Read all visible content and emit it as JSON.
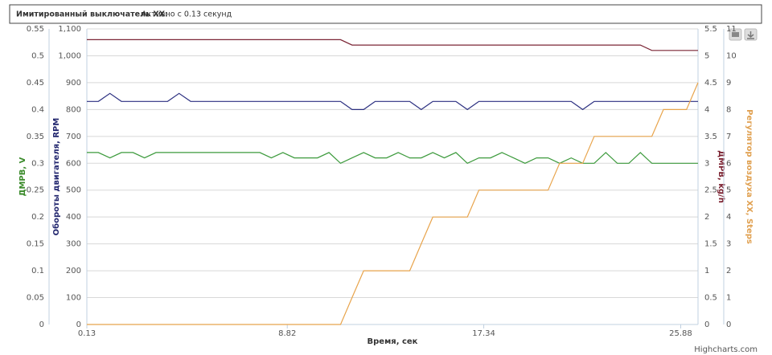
{
  "header": {
    "label": "Имитированный выключатель XX:",
    "value": "Активно с 0.13 секунд"
  },
  "credits": "Highcharts.com",
  "chart_data": {
    "type": "line",
    "x_title": "Время, сек",
    "x": [
      0.13,
      0.63,
      1.13,
      1.63,
      2.13,
      2.63,
      3.13,
      3.63,
      4.13,
      4.63,
      5.13,
      5.63,
      6.13,
      6.63,
      7.13,
      7.63,
      8.13,
      8.63,
      9.13,
      9.63,
      10.13,
      10.63,
      11.13,
      11.63,
      12.13,
      12.63,
      13.13,
      13.63,
      14.13,
      14.63,
      15.13,
      15.63,
      16.13,
      16.63,
      17.13,
      17.63,
      18.13,
      18.63,
      19.13,
      19.63,
      20.13,
      20.63,
      21.13,
      21.63,
      22.13,
      22.63,
      23.13,
      23.63,
      24.13,
      24.63,
      25.13,
      25.63,
      26.13,
      26.63
    ],
    "xlim": [
      0.13,
      26.63
    ],
    "xticks": [
      0.13,
      8.82,
      17.34,
      25.88
    ],
    "grid": true,
    "axes": [
      {
        "title": "ДМРВ, V",
        "color": "#3a8a2a",
        "side": "left",
        "lim": [
          0,
          0.55
        ],
        "ticks": [
          0,
          0.05,
          0.1,
          0.15,
          0.2,
          0.25,
          0.3,
          0.35,
          0.4,
          0.45,
          0.5,
          0.55
        ]
      },
      {
        "title": "Обороты двигателя, RPM",
        "color": "#22266e",
        "side": "left",
        "lim": [
          0,
          1100
        ],
        "ticks": [
          0,
          100,
          200,
          300,
          400,
          500,
          600,
          700,
          800,
          900,
          {
            "value": 1000,
            "label": "1,000"
          },
          {
            "value": 1100,
            "label": "1,100"
          }
        ]
      },
      {
        "title": "ДМРВ, kg/h",
        "color": "#7a1f2e",
        "side": "right",
        "lim": [
          0,
          5.5
        ],
        "ticks": [
          0,
          0.5,
          1,
          1.5,
          2,
          2.5,
          3,
          3.5,
          4,
          4.5,
          5,
          5.5
        ]
      },
      {
        "title": "Регулятор воздуха ХХ, Steps",
        "color": "#e0a050",
        "side": "right",
        "lim": [
          0,
          11
        ],
        "ticks": [
          0,
          1,
          2,
          3,
          4,
          5,
          6,
          7,
          8,
          9,
          10,
          11
        ]
      }
    ],
    "series": [
      {
        "name": "ДМРВ, V",
        "axis": 0,
        "color": "#3c9a3c",
        "values": [
          0.32,
          0.32,
          0.31,
          0.32,
          0.32,
          0.31,
          0.32,
          0.32,
          0.32,
          0.32,
          0.32,
          0.32,
          0.32,
          0.32,
          0.32,
          0.32,
          0.31,
          0.32,
          0.31,
          0.31,
          0.31,
          0.32,
          0.3,
          0.31,
          0.32,
          0.31,
          0.31,
          0.32,
          0.31,
          0.31,
          0.32,
          0.31,
          0.32,
          0.3,
          0.31,
          0.31,
          0.32,
          0.31,
          0.3,
          0.31,
          0.31,
          0.3,
          0.31,
          0.3,
          0.3,
          0.32,
          0.3,
          0.3,
          0.32,
          0.3,
          0.3,
          0.3,
          0.3,
          0.3
        ]
      },
      {
        "name": "Обороты двигателя, RPM",
        "axis": 1,
        "color": "#2b2f80",
        "values": [
          830,
          830,
          860,
          830,
          830,
          830,
          830,
          830,
          860,
          830,
          830,
          830,
          830,
          830,
          830,
          830,
          830,
          830,
          830,
          830,
          830,
          830,
          830,
          800,
          800,
          830,
          830,
          830,
          830,
          800,
          830,
          830,
          830,
          800,
          830,
          830,
          830,
          830,
          830,
          830,
          830,
          830,
          830,
          800,
          830,
          830,
          830,
          830,
          830,
          830,
          830,
          830,
          830,
          830
        ]
      },
      {
        "name": "ДМРВ, kg/h",
        "axis": 2,
        "color": "#7b2535",
        "values": [
          5.3,
          5.3,
          5.3,
          5.3,
          5.3,
          5.3,
          5.3,
          5.3,
          5.3,
          5.3,
          5.3,
          5.3,
          5.3,
          5.3,
          5.3,
          5.3,
          5.3,
          5.3,
          5.3,
          5.3,
          5.3,
          5.3,
          5.3,
          5.2,
          5.2,
          5.2,
          5.2,
          5.2,
          5.2,
          5.2,
          5.2,
          5.2,
          5.2,
          5.2,
          5.2,
          5.2,
          5.2,
          5.2,
          5.2,
          5.2,
          5.2,
          5.2,
          5.2,
          5.2,
          5.2,
          5.2,
          5.2,
          5.2,
          5.2,
          5.1,
          5.1,
          5.1,
          5.1,
          5.1
        ]
      },
      {
        "name": "Регулятор воздуха ХХ, Steps",
        "axis": 3,
        "color": "#e8a44c",
        "values": [
          0,
          0,
          0,
          0,
          0,
          0,
          0,
          0,
          0,
          0,
          0,
          0,
          0,
          0,
          0,
          0,
          0,
          0,
          0,
          0,
          0,
          0,
          0,
          1,
          2,
          2,
          2,
          2,
          2,
          3,
          4,
          4,
          4,
          4,
          5,
          5,
          5,
          5,
          5,
          5,
          5,
          6,
          6,
          6,
          7,
          7,
          7,
          7,
          7,
          7,
          8,
          8,
          8,
          9
        ]
      }
    ]
  }
}
